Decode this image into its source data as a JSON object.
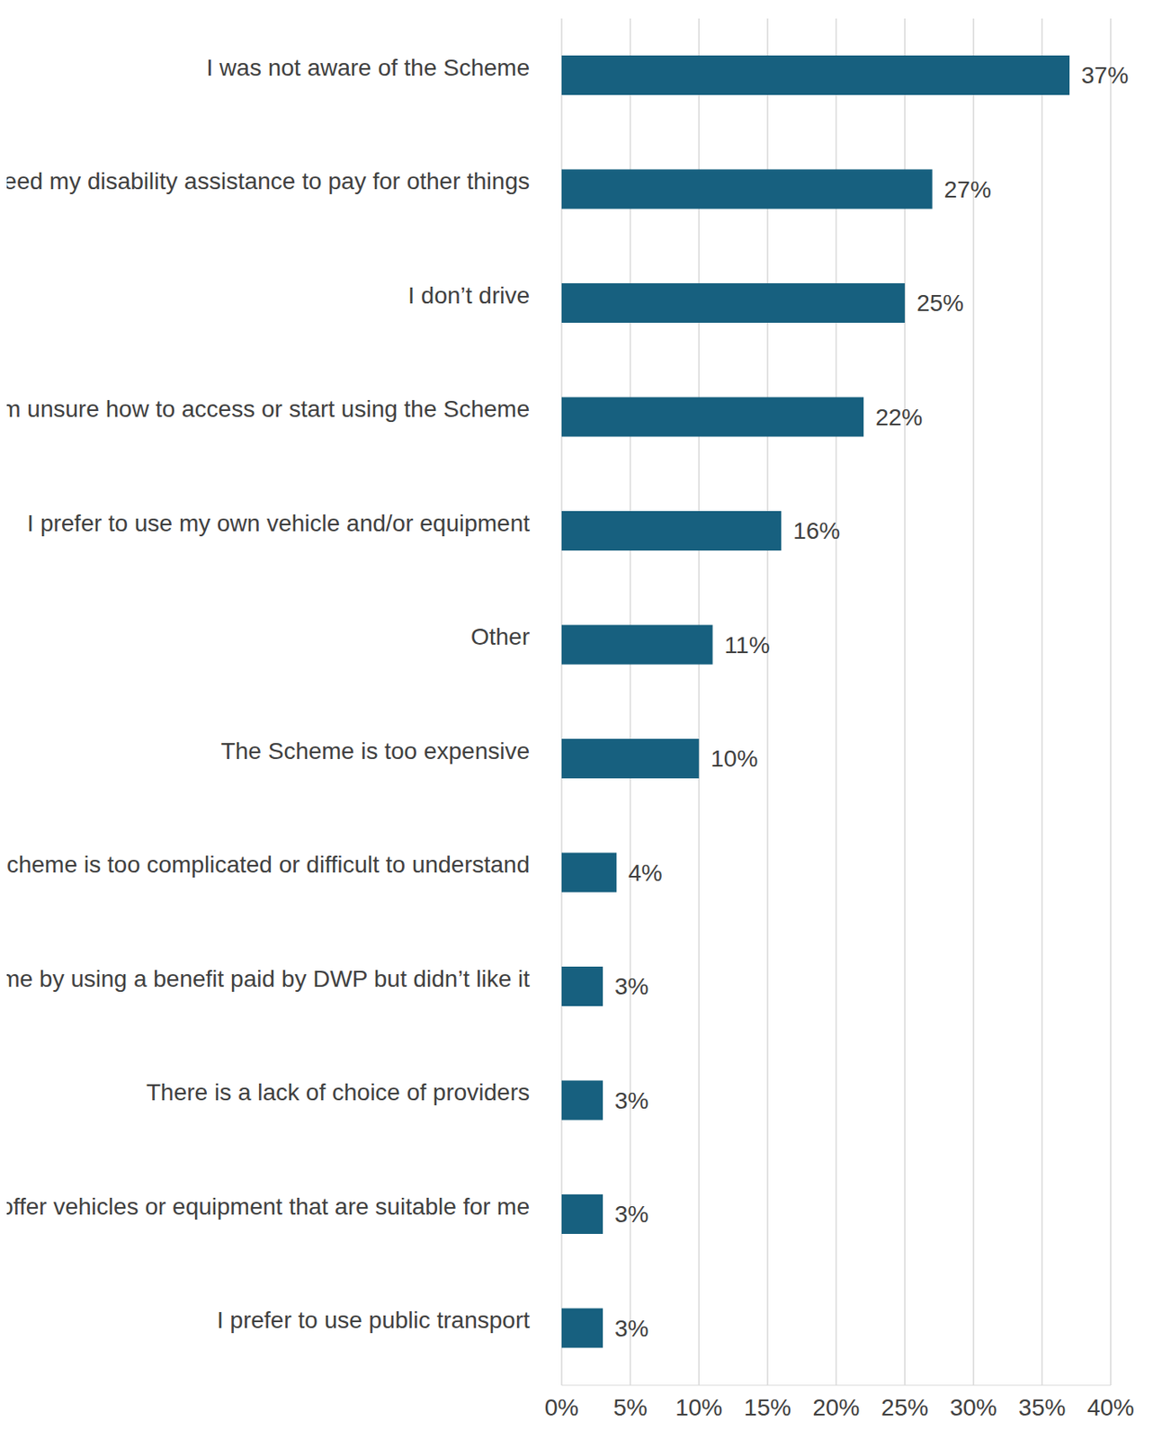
{
  "chart_data": {
    "type": "bar",
    "orientation": "horizontal",
    "categories": [
      "I was not aware of the Scheme",
      "I need my disability assistance to pay for other things",
      "I don’t drive",
      "I am unsure how to access or start using the Scheme",
      "I prefer to use my own vehicle and/or equipment",
      "Other",
      "The Scheme is too expensive",
      "The Scheme is too complicated or difficult to understand",
      "I have used the pre-AVE Scheme by using a benefit paid by DWP but didn’t like it",
      "There is a lack of choice of providers",
      "The Scheme does not offer vehicles or equipment that are suitable for me",
      "I prefer to use public transport"
    ],
    "values": [
      37,
      27,
      25,
      22,
      16,
      11,
      10,
      4,
      3,
      3,
      3,
      3
    ],
    "value_labels": [
      "37%",
      "27%",
      "25%",
      "22%",
      "16%",
      "11%",
      "10%",
      "4%",
      "3%",
      "3%",
      "3%",
      "3%"
    ],
    "data_labels": true,
    "color": "#17607f",
    "xlim": [
      0,
      40
    ],
    "xticks": [
      {
        "value": 0,
        "label": "0%"
      },
      {
        "value": 5,
        "label": "5%"
      },
      {
        "value": 10,
        "label": "10%"
      },
      {
        "value": 15,
        "label": "15%"
      },
      {
        "value": 20,
        "label": "20%"
      },
      {
        "value": 25,
        "label": "25%"
      },
      {
        "value": 30,
        "label": "30%"
      },
      {
        "value": 35,
        "label": "35%"
      },
      {
        "value": 40,
        "label": "40%"
      }
    ],
    "grid": true
  }
}
